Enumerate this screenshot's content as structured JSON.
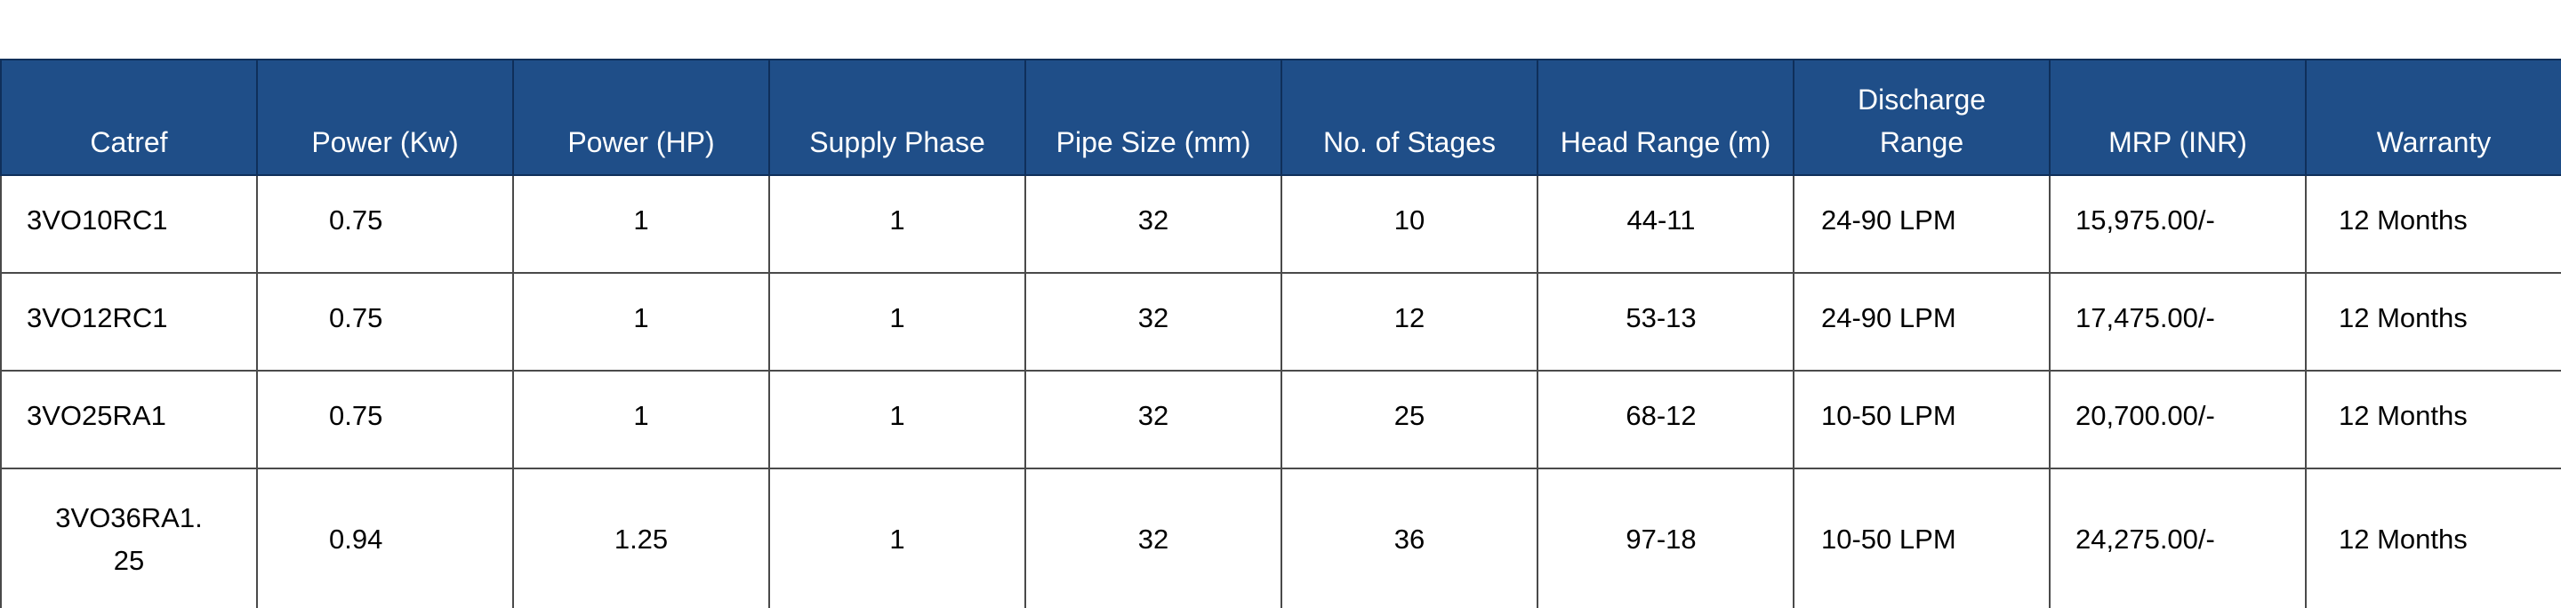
{
  "table": {
    "headers": [
      "Catref",
      "Power (Kw)",
      "Power (HP)",
      "Supply Phase",
      "Pipe Size (mm)",
      "No. of Stages",
      "Head Range (m)",
      "Discharge\nRange",
      "MRP (INR)",
      "Warranty"
    ],
    "rows": [
      [
        "3VO10RC1",
        "0.75",
        "1",
        "1",
        "32",
        "10",
        "44-11",
        "24-90 LPM",
        "15,975.00/-",
        "12 Months"
      ],
      [
        "3VO12RC1",
        "0.75",
        "1",
        "1",
        "32",
        "12",
        "53-13",
        "24-90 LPM",
        "17,475.00/-",
        "12 Months"
      ],
      [
        "3VO25RA1",
        "0.75",
        "1",
        "1",
        "32",
        "25",
        "68-12",
        "10-50 LPM",
        "20,700.00/-",
        "12 Months"
      ],
      [
        "3VO36RA1.\n25",
        "0.94",
        "1.25",
        "1",
        "32",
        "36",
        "97-18",
        "10-50 LPM",
        "24,275.00/-",
        "12 Months"
      ]
    ]
  },
  "colors": {
    "header_bg": "#1f4e88",
    "header_text": "#ffffff",
    "grid_line": "#4a4a4a"
  }
}
